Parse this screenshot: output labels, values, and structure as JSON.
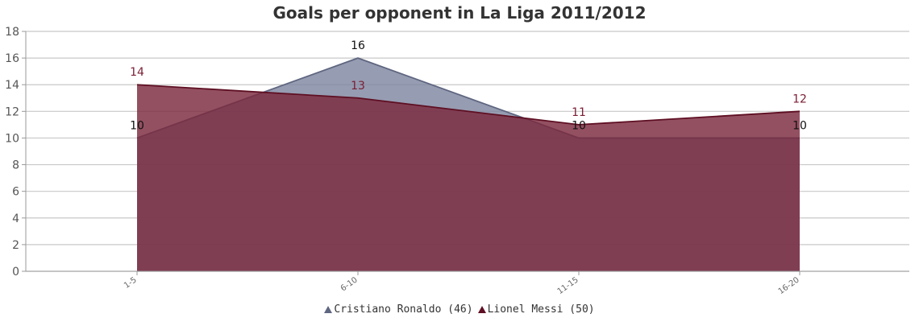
{
  "chart_data": {
    "type": "area",
    "title": "Goals per opponent in La Liga 2011/2012",
    "categories": [
      "1-5",
      "6-10",
      "11-15",
      "16-20"
    ],
    "ylim": [
      0,
      18
    ],
    "yticks": [
      0,
      2,
      4,
      6,
      8,
      10,
      12,
      14,
      16,
      18
    ],
    "grid": true,
    "legend_position": "bottom",
    "series": [
      {
        "name": "Cristiano Ronaldo (46)",
        "values": [
          10,
          16,
          10,
          10
        ],
        "fill": "#7f86a0",
        "line": "#5f6680",
        "label_color": "#111111"
      },
      {
        "name": "Lionel Messi (50)",
        "values": [
          14,
          13,
          11,
          12
        ],
        "fill": "#7b2a3e",
        "line": "#5e0f22",
        "label_color": "#7a1e33"
      }
    ]
  }
}
